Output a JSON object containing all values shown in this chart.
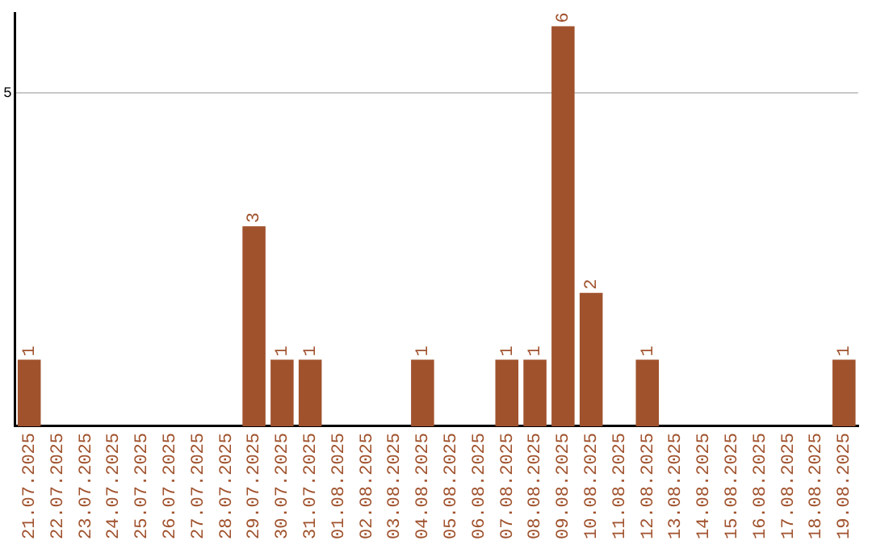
{
  "chart_data": {
    "type": "bar",
    "categories": [
      "21.07.2025",
      "22.07.2025",
      "23.07.2025",
      "24.07.2025",
      "25.07.2025",
      "26.07.2025",
      "27.07.2025",
      "28.07.2025",
      "29.07.2025",
      "30.07.2025",
      "31.07.2025",
      "01.08.2025",
      "02.08.2025",
      "03.08.2025",
      "04.08.2025",
      "05.08.2025",
      "06.08.2025",
      "07.08.2025",
      "08.08.2025",
      "09.08.2025",
      "10.08.2025",
      "11.08.2025",
      "12.08.2025",
      "13.08.2025",
      "14.08.2025",
      "15.08.2025",
      "16.08.2025",
      "17.08.2025",
      "18.08.2025",
      "19.08.2025"
    ],
    "values": [
      1,
      0,
      0,
      0,
      0,
      0,
      0,
      0,
      3,
      1,
      1,
      0,
      0,
      0,
      1,
      0,
      0,
      1,
      1,
      6,
      2,
      0,
      1,
      0,
      0,
      0,
      0,
      0,
      0,
      1
    ],
    "value_labels": [
      "1",
      null,
      null,
      null,
      null,
      null,
      null,
      null,
      "3",
      "1",
      "1",
      null,
      null,
      null,
      "1",
      null,
      null,
      "1",
      "1",
      "6",
      "2",
      null,
      "1",
      null,
      null,
      null,
      null,
      null,
      null,
      "1"
    ],
    "color": "#a0522d",
    "ylim": [
      0,
      6.2
    ],
    "yticks": [
      5
    ],
    "grid": "y",
    "legend": false
  }
}
